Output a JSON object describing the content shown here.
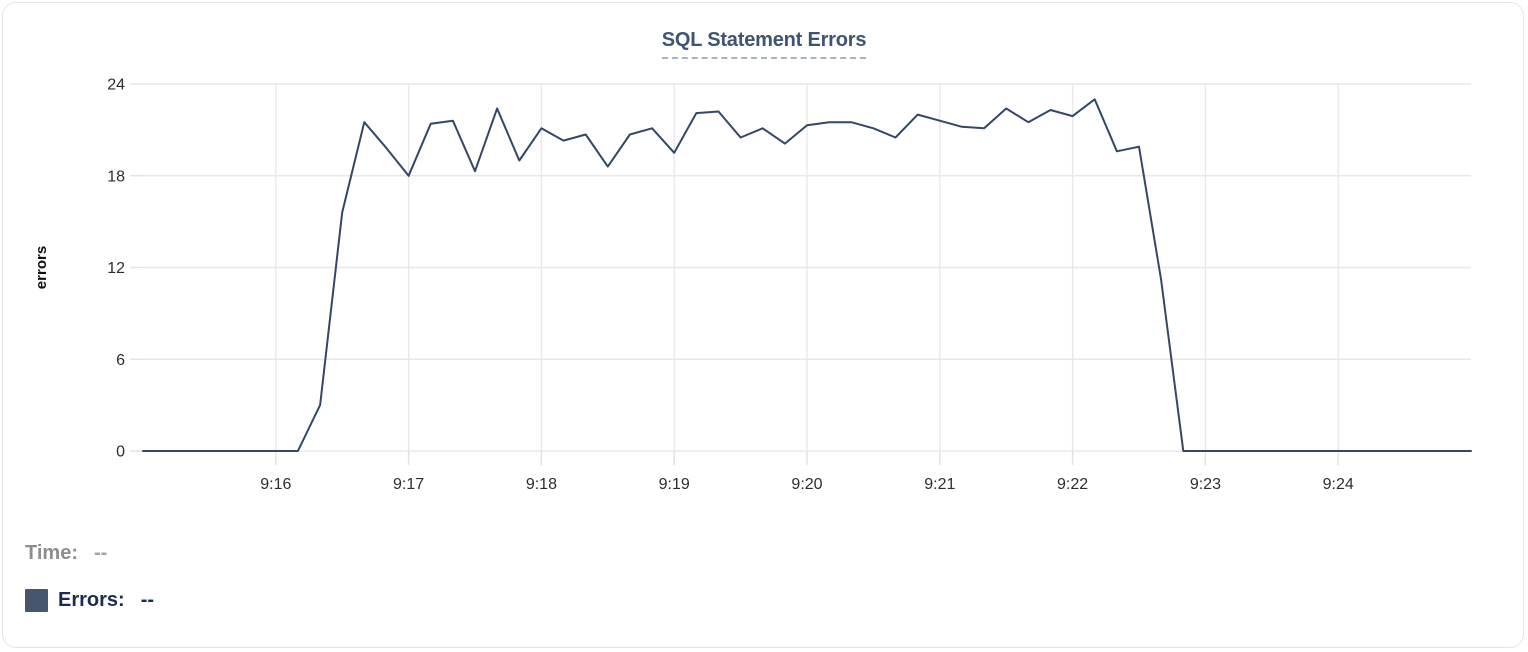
{
  "card": {
    "title": "SQL Statement Errors"
  },
  "tooltip_readout": {
    "time_label": "Time:",
    "time_value": "--",
    "errors_label": "Errors:",
    "errors_value": "--"
  },
  "colors": {
    "line": "#334767",
    "title": "#3d5475",
    "title_underline": "#a6b3c8",
    "grid": "#e8e8e8",
    "tick": "#e2e2e2",
    "axis_text": "#2d2d2d",
    "axis_title_text": "#111111",
    "legend_gray": "#8e8e8e",
    "legend_gray_value": "#a3a3a3",
    "legend_navy": "#1b2b52",
    "swatch": "#45566e",
    "card_border": "#e5e5e5"
  },
  "chart_data": {
    "type": "line",
    "title": "SQL Statement Errors",
    "xlabel": "",
    "ylabel": "errors",
    "ylim": [
      0,
      24
    ],
    "y_ticks": [
      0,
      6,
      12,
      18,
      24
    ],
    "x_ticks": [
      "9:16",
      "9:17",
      "9:18",
      "9:19",
      "9:20",
      "9:21",
      "9:22",
      "9:23",
      "9:24"
    ],
    "x_range": [
      "9:15:00",
      "9:25:00"
    ],
    "grid": true,
    "legend_position": "none",
    "series": [
      {
        "name": "Errors",
        "x": [
          "9:15:00",
          "9:15:10",
          "9:15:20",
          "9:15:30",
          "9:15:40",
          "9:15:50",
          "9:16:00",
          "9:16:10",
          "9:16:20",
          "9:16:30",
          "9:16:40",
          "9:16:50",
          "9:17:00",
          "9:17:10",
          "9:17:20",
          "9:17:30",
          "9:17:40",
          "9:17:50",
          "9:18:00",
          "9:18:10",
          "9:18:20",
          "9:18:30",
          "9:18:40",
          "9:18:50",
          "9:19:00",
          "9:19:10",
          "9:19:20",
          "9:19:30",
          "9:19:40",
          "9:19:50",
          "9:20:00",
          "9:20:10",
          "9:20:20",
          "9:20:30",
          "9:20:40",
          "9:20:50",
          "9:21:00",
          "9:21:10",
          "9:21:20",
          "9:21:30",
          "9:21:40",
          "9:21:50",
          "9:22:00",
          "9:22:10",
          "9:22:20",
          "9:22:30",
          "9:22:40",
          "9:22:50",
          "9:23:00",
          "9:23:10",
          "9:23:20",
          "9:23:30",
          "9:23:40",
          "9:23:50",
          "9:24:00",
          "9:24:10",
          "9:24:20",
          "9:24:30",
          "9:24:40",
          "9:24:50",
          "9:25:00"
        ],
        "values": [
          0,
          0,
          0,
          0,
          0,
          0,
          0,
          0,
          3,
          15.6,
          21.5,
          19.8,
          18,
          21.4,
          21.6,
          18.3,
          22.4,
          19,
          21.1,
          20.3,
          20.7,
          18.6,
          20.7,
          21.1,
          19.5,
          22.1,
          22.2,
          20.5,
          21.1,
          20.1,
          21.3,
          21.5,
          21.5,
          21.1,
          20.5,
          22,
          21.6,
          21.2,
          21.1,
          22.4,
          21.5,
          22.3,
          21.9,
          23,
          19.6,
          19.9,
          11.2,
          0,
          0,
          0,
          0,
          0,
          0,
          0,
          0,
          0,
          0,
          0,
          0,
          0,
          0
        ]
      }
    ]
  }
}
